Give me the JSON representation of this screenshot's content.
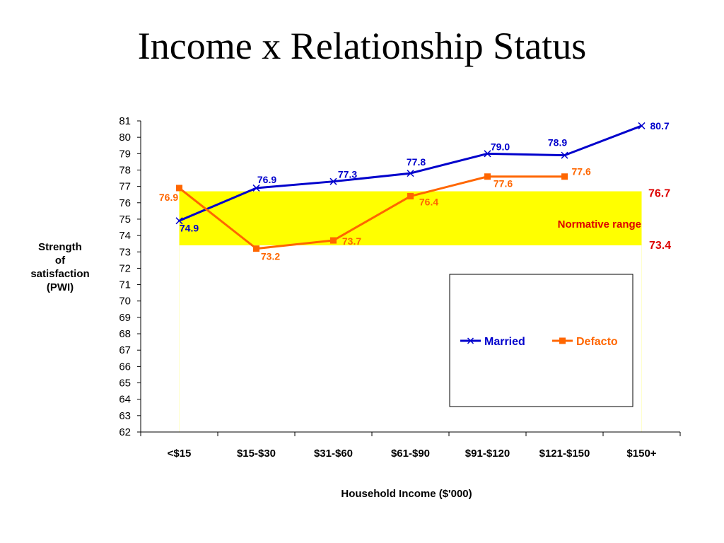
{
  "slide": {
    "title": "Income x Relationship Status"
  },
  "colors": {
    "married": "#0000cc",
    "defacto": "#ff6600",
    "normative_band": "#ffff00",
    "normative_text": "#dd0000"
  },
  "chart_data": {
    "type": "line",
    "xlabel": "Household Income ($'000)",
    "ylabel": "Strength of satisfaction (PWI)",
    "ylabel_lines": [
      "Strength",
      "of",
      "satisfaction",
      "(PWI)"
    ],
    "ylim": [
      62,
      81
    ],
    "y_ticks": [
      62,
      63,
      64,
      65,
      66,
      67,
      68,
      69,
      70,
      71,
      72,
      73,
      74,
      75,
      76,
      77,
      78,
      79,
      80,
      81
    ],
    "categories": [
      "<$15",
      "$15-$30",
      "$31-$60",
      "$61-$90",
      "$91-$120",
      "$121-$150",
      "$150+"
    ],
    "series": [
      {
        "name": "Married",
        "marker": "x",
        "values": [
          74.9,
          76.9,
          77.3,
          77.8,
          79.0,
          78.9,
          80.7
        ],
        "labels": [
          "74.9",
          "76.9",
          "77.3",
          "77.8",
          "79.0",
          "78.9",
          "80.7"
        ]
      },
      {
        "name": "Defacto",
        "marker": "square",
        "values": [
          76.9,
          73.2,
          73.7,
          76.4,
          77.6,
          77.6,
          null
        ],
        "labels": [
          "76.9",
          "73.2",
          "73.7",
          "76.4",
          "77.6",
          "77.6",
          ""
        ]
      }
    ],
    "normative_range": {
      "label": "Normative range",
      "upper": 76.7,
      "lower": 73.4,
      "upper_label": "76.7",
      "lower_label": "73.4"
    },
    "grid": false,
    "legend": "inside-lower-right"
  }
}
